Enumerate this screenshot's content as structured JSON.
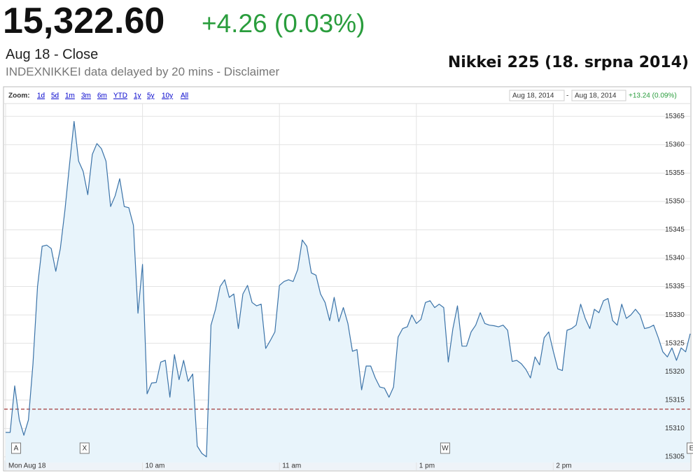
{
  "header": {
    "price": "15,322.60",
    "change": "+4.26 (0.03%)",
    "status": "Aug 18 - Close",
    "note": "INDEXNIKKEI data delayed by 20 mins - Disclaimer",
    "caption": "Nikkei 225 (18. srpna 2014)"
  },
  "toolbar": {
    "zoom_label": "Zoom:",
    "ranges": [
      "1d",
      "5d",
      "1m",
      "3m",
      "6m",
      "YTD",
      "1y",
      "5y",
      "10y",
      "All"
    ],
    "from": "Aug 18, 2014",
    "separator": "-",
    "to": "Aug 18, 2014",
    "change": "+13.24 (0.09%)"
  },
  "chart_data": {
    "type": "area",
    "categories": [
      "Mon Aug 18",
      null,
      null,
      null,
      null,
      null,
      null,
      null,
      null,
      null,
      null,
      null,
      null,
      null,
      null,
      null,
      null,
      null,
      null,
      null,
      null,
      null,
      null,
      null,
      null,
      null,
      null,
      null,
      null,
      null,
      "10 am",
      null,
      null,
      null,
      null,
      null,
      null,
      null,
      null,
      null,
      null,
      null,
      null,
      null,
      null,
      null,
      null,
      null,
      null,
      null,
      null,
      null,
      null,
      null,
      null,
      null,
      null,
      null,
      null,
      null,
      "11 am",
      null,
      null,
      null,
      null,
      null,
      null,
      null,
      null,
      null,
      null,
      null,
      null,
      null,
      null,
      null,
      null,
      null,
      null,
      null,
      null,
      null,
      null,
      null,
      null,
      null,
      null,
      null,
      null,
      null,
      "1 pm",
      null,
      null,
      null,
      null,
      null,
      null,
      null,
      null,
      null,
      null,
      null,
      null,
      null,
      null,
      null,
      null,
      null,
      null,
      null,
      null,
      null,
      null,
      null,
      null,
      null,
      null,
      null,
      null,
      null,
      "2 pm",
      null,
      null,
      null,
      null,
      null,
      null,
      null,
      null,
      null,
      null,
      null,
      null,
      null,
      null,
      null,
      null,
      null,
      null,
      null,
      null,
      null,
      null,
      null,
      null,
      null,
      null,
      null,
      null,
      null,
      null
    ],
    "values": [
      15309.3,
      15309.3,
      15317.5,
      15311.5,
      15308.8,
      15311.5,
      15321.4,
      15335.0,
      15342.1,
      15342.3,
      15341.7,
      15337.7,
      15341.7,
      15348.5,
      15356.5,
      15364.1,
      15357.1,
      15355.3,
      15351.2,
      15358.3,
      15360.2,
      15359.3,
      15357.1,
      15349.1,
      15351.0,
      15354.0,
      15349.1,
      15348.9,
      15345.8,
      15330.3,
      15338.9,
      15316.1,
      15318.0,
      15318.1,
      15321.7,
      15322.0,
      15315.5,
      15323.0,
      15318.6,
      15322.0,
      15318.3,
      15319.6,
      15306.9,
      15305.6,
      15305.0,
      15328.2,
      15331.0,
      15335.0,
      15336.2,
      15333.1,
      15333.7,
      15327.6,
      15333.7,
      15335.2,
      15332.2,
      15331.6,
      15331.9,
      15324.1,
      15325.5,
      15327.0,
      15335.2,
      15335.9,
      15336.2,
      15335.9,
      15338.0,
      15343.2,
      15342.1,
      15337.4,
      15337.0,
      15333.7,
      15332.2,
      15329.0,
      15333.1,
      15328.8,
      15331.3,
      15328.5,
      15323.6,
      15323.9,
      15316.8,
      15321.0,
      15321.0,
      15318.9,
      15317.3,
      15317.1,
      15315.5,
      15317.3,
      15326.1,
      15327.6,
      15327.9,
      15330.0,
      15328.5,
      15329.2,
      15332.2,
      15332.5,
      15331.3,
      15331.9,
      15331.3,
      15321.7,
      15327.6,
      15331.6,
      15324.5,
      15324.5,
      15327.0,
      15328.2,
      15330.4,
      15328.5,
      15328.2,
      15328.1,
      15327.9,
      15328.2,
      15327.3,
      15321.8,
      15322.0,
      15321.4,
      15320.4,
      15318.9,
      15322.6,
      15321.2,
      15326.0,
      15327.0,
      15323.6,
      15320.5,
      15320.2,
      15327.3,
      15327.6,
      15328.2,
      15331.9,
      15329.4,
      15327.6,
      15331.0,
      15330.4,
      15332.5,
      15332.9,
      15329.0,
      15328.2,
      15331.9,
      15329.4,
      15330.0,
      15331.0,
      15330.0,
      15327.6,
      15327.8,
      15328.2,
      15326.0,
      15323.5,
      15322.6,
      15324.2,
      15322.0,
      15324.2,
      15323.5,
      15326.7
    ],
    "color": "#3b73a8",
    "fill": "#e8f4fb",
    "ylim": [
      15304,
      15367
    ],
    "yticks": [
      15305,
      15310,
      15315,
      15320,
      15325,
      15330,
      15335,
      15340,
      15345,
      15350,
      15355,
      15360,
      15365
    ],
    "grid": true,
    "reference_line": 15313.4,
    "reference_color": "#a33a3a",
    "flags": [
      {
        "label": "A",
        "at": 1
      },
      {
        "label": "X",
        "at": 16
      },
      {
        "label": "W",
        "at": 95
      },
      {
        "label": "E",
        "at": 149
      }
    ]
  }
}
